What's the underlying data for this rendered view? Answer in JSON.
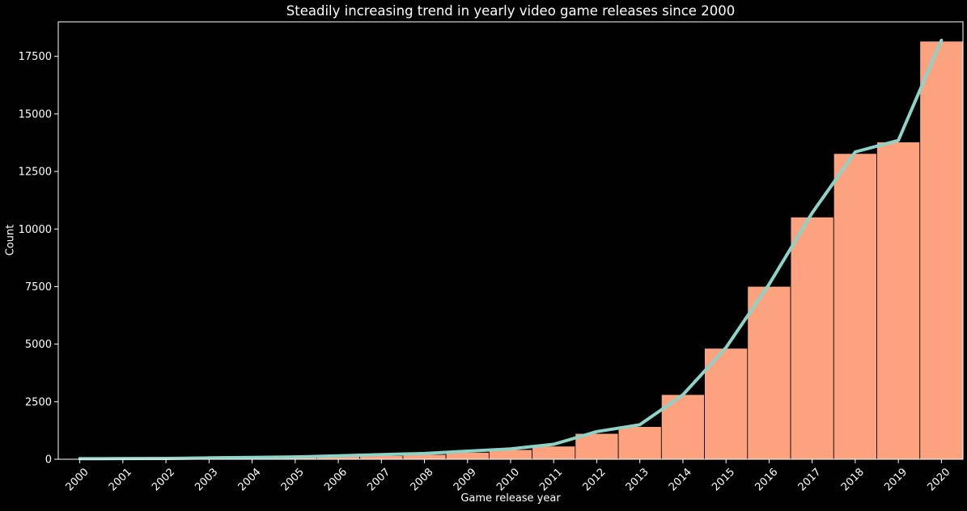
{
  "chart_data": {
    "type": "bar",
    "title": "Steadily increasing trend in yearly video game releases since 2000",
    "xlabel": "Game release year",
    "ylabel": "Count",
    "categories": [
      "2000",
      "2001",
      "2002",
      "2003",
      "2004",
      "2005",
      "2006",
      "2007",
      "2008",
      "2009",
      "2010",
      "2011",
      "2012",
      "2013",
      "2014",
      "2015",
      "2016",
      "2017",
      "2018",
      "2019",
      "2020"
    ],
    "series": [
      {
        "type": "bar",
        "values": [
          30,
          35,
          40,
          80,
          90,
          100,
          130,
          160,
          210,
          300,
          420,
          570,
          1120,
          1420,
          2810,
          4820,
          7510,
          10520,
          13280,
          13780,
          18160
        ]
      },
      {
        "type": "line",
        "values": [
          25,
          30,
          35,
          60,
          80,
          100,
          150,
          200,
          250,
          350,
          450,
          650,
          1200,
          1500,
          2800,
          4850,
          7600,
          10700,
          13350,
          13850,
          18200
        ]
      }
    ],
    "ylim": [
      0,
      19000
    ],
    "yticks": [
      0,
      2500,
      5000,
      7500,
      10000,
      12500,
      15000,
      17500
    ],
    "ytick_labels": [
      "0",
      "2500",
      "5000",
      "7500",
      "10000",
      "12500",
      "15000",
      "17500"
    ],
    "grid": false,
    "colors": {
      "background": "#000000",
      "bar": "#fca27e",
      "bar_edge": "#000000",
      "line": "#8dd3c7",
      "text": "#ffffff",
      "axes": "#ffffff"
    }
  }
}
